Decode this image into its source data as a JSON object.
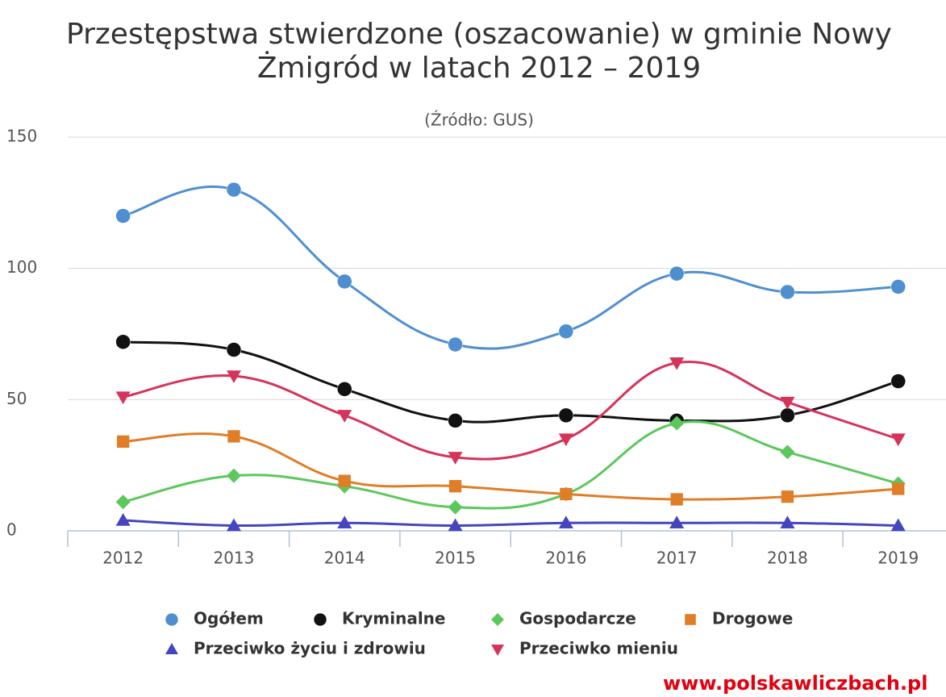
{
  "chart_data": {
    "type": "line",
    "title": [
      "Przestępstwa stwierdzone (oszacowanie) w gminie Nowy",
      "Żmigród w latach 2012 – 2019"
    ],
    "subtitle": "(Źródło: GUS)",
    "watermark": "www.polskawliczbach.pl",
    "categories": [
      "2012",
      "2013",
      "2014",
      "2015",
      "2016",
      "2017",
      "2018",
      "2019"
    ],
    "ylim": [
      0,
      150
    ],
    "yticks": [
      0,
      50,
      100,
      150
    ],
    "grid": true,
    "smooth": true,
    "series": [
      {
        "name": "Ogółem",
        "color": "#4f8fd0",
        "marker": "circle",
        "values": [
          120,
          130,
          95,
          71,
          76,
          98,
          91,
          93
        ]
      },
      {
        "name": "Kryminalne",
        "color": "#111111",
        "marker": "circle",
        "values": [
          72,
          69,
          54,
          42,
          44,
          42,
          44,
          57
        ]
      },
      {
        "name": "Gospodarcze",
        "color": "#5cc85c",
        "marker": "diamond",
        "values": [
          11,
          21,
          17,
          9,
          14,
          41,
          30,
          18
        ]
      },
      {
        "name": "Drogowe",
        "color": "#e07d27",
        "marker": "square",
        "values": [
          34,
          36,
          19,
          17,
          14,
          12,
          13,
          16
        ]
      },
      {
        "name": "Przeciwko życiu i zdrowiu",
        "color": "#4545c0",
        "marker": "triangle",
        "values": [
          4,
          2,
          3,
          2,
          3,
          3,
          3,
          2
        ]
      },
      {
        "name": "Przeciwko mieniu",
        "color": "#d6335a",
        "marker": "triangle-down",
        "values": [
          51,
          59,
          44,
          28,
          35,
          64,
          49,
          35
        ]
      }
    ]
  }
}
